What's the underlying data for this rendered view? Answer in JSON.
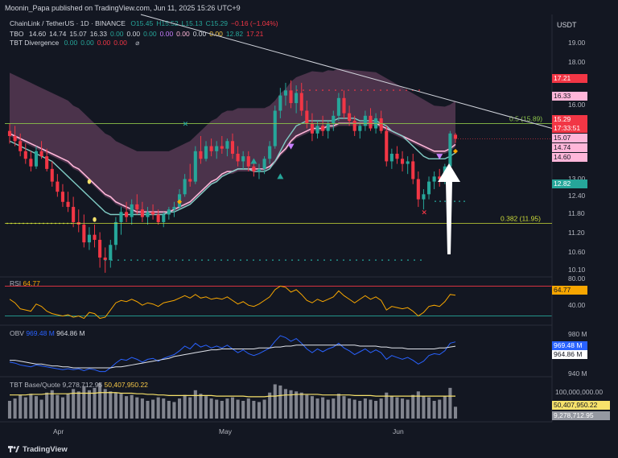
{
  "header": {
    "publisher": "Moonin_Papa published on TradingView.com, Jun 11, 2025 15:26 UTC+9"
  },
  "legend": {
    "symbol": "ChainLink / TetherUS · 1D · BINANCE",
    "ohlc": [
      {
        "k": "O",
        "v": "15.45",
        "c": "up"
      },
      {
        "k": "H",
        "v": "15.52",
        "c": "up"
      },
      {
        "k": "L",
        "v": "15.13",
        "c": "up"
      },
      {
        "k": "C",
        "v": "15.29",
        "c": "up"
      },
      {
        "k": "",
        "v": "−0.16 (−1.04%)",
        "c": "dn"
      }
    ],
    "tbo": {
      "name": "TBO",
      "values": [
        "14.60",
        "14.74",
        "15.07",
        "16.33",
        "0.00",
        "0.00",
        "0.00",
        "0.00",
        "0.00",
        "0.00",
        "0.00",
        "12.82",
        "17.21"
      ]
    },
    "divergence": {
      "name": "TBT Divergence",
      "values": [
        "0.00",
        "0.00",
        "0.00",
        "0.00"
      ]
    }
  },
  "price_axis": {
    "currency": "USDT",
    "ticks": [
      "19.00",
      "18.00",
      "17.21",
      "16.33",
      "16.00",
      "15.29",
      "15.07",
      "14.74",
      "14.60",
      "13.00",
      "12.82",
      "12.40",
      "11.80",
      "11.20",
      "10.60",
      "10.10"
    ],
    "countdown": "17:33:51"
  },
  "fib": [
    {
      "label": "0.5 (15.89)",
      "value": 15.89
    },
    {
      "label": "0.382 (11.95)",
      "value": 11.95
    }
  ],
  "rsi": {
    "title": "RSI",
    "value": "64.77",
    "ticks": [
      "80.00",
      "40.00"
    ]
  },
  "obv": {
    "title": "OBV",
    "v1": "969.48 M",
    "v2": "964.86 M",
    "ticks": [
      "980 M",
      "940 M"
    ]
  },
  "volume": {
    "title": "TBT Base/Quote",
    "v1": "9,278,712.95",
    "v2": "50,407,950.22",
    "ticks": [
      "100,000,000.00"
    ]
  },
  "time_axis": [
    "Apr",
    "May",
    "Jun"
  ],
  "brand": "TradingView",
  "colors": {
    "up": "#26a69a",
    "down": "#f23645",
    "band": "#8a5a7a",
    "ma": "#ffb6d9",
    "rsi": "#f7a600",
    "obv": "#2962ff"
  },
  "chart_data": {
    "type": "candlestick",
    "title": "ChainLink / TetherUS · 1D · BINANCE",
    "x": [
      "Mar 19",
      "Mar 20",
      "Mar 21",
      "Mar 22",
      "Mar 23",
      "Mar 24",
      "Mar 25",
      "Mar 26",
      "Mar 27",
      "Mar 28",
      "Mar 29",
      "Mar 30",
      "Mar 31",
      "Apr 1",
      "Apr 2",
      "Apr 3",
      "Apr 4",
      "Apr 5",
      "Apr 6",
      "Apr 7",
      "Apr 8",
      "Apr 9",
      "Apr 10",
      "Apr 11",
      "Apr 12",
      "Apr 13",
      "Apr 14",
      "Apr 15",
      "Apr 16",
      "Apr 17",
      "Apr 18",
      "Apr 19",
      "Apr 20",
      "Apr 21",
      "Apr 22",
      "Apr 23",
      "Apr 24",
      "Apr 25",
      "Apr 26",
      "Apr 27",
      "Apr 28",
      "Apr 29",
      "Apr 30",
      "May 1",
      "May 2",
      "May 3",
      "May 4",
      "May 5",
      "May 6",
      "May 7",
      "May 8",
      "May 9",
      "May 10",
      "May 11",
      "May 12",
      "May 13",
      "May 14",
      "May 15",
      "May 16",
      "May 17",
      "May 18",
      "May 19",
      "May 20",
      "May 21",
      "May 22",
      "May 23",
      "May 24",
      "May 25",
      "May 26",
      "May 27",
      "May 28",
      "May 29",
      "May 30",
      "May 31",
      "Jun 1",
      "Jun 2",
      "Jun 3",
      "Jun 4",
      "Jun 5",
      "Jun 6",
      "Jun 7",
      "Jun 8",
      "Jun 9",
      "Jun 10",
      "Jun 11"
    ],
    "candles": [
      [
        15.6,
        15.9,
        15.1,
        15.4
      ],
      [
        15.4,
        15.8,
        15.0,
        15.2
      ],
      [
        15.2,
        15.5,
        14.6,
        14.8
      ],
      [
        14.8,
        15.1,
        14.3,
        14.5
      ],
      [
        14.5,
        14.8,
        14.0,
        14.2
      ],
      [
        14.2,
        15.0,
        14.1,
        14.8
      ],
      [
        14.8,
        15.2,
        14.5,
        14.6
      ],
      [
        14.6,
        14.9,
        14.0,
        14.1
      ],
      [
        14.1,
        14.4,
        13.4,
        13.6
      ],
      [
        13.6,
        13.9,
        13.0,
        13.2
      ],
      [
        13.2,
        13.5,
        12.6,
        12.8
      ],
      [
        12.8,
        13.2,
        12.4,
        12.6
      ],
      [
        12.6,
        13.0,
        11.8,
        12.0
      ],
      [
        12.0,
        12.5,
        11.6,
        11.9
      ],
      [
        11.9,
        12.3,
        11.0,
        11.2
      ],
      [
        11.2,
        11.8,
        10.9,
        11.5
      ],
      [
        11.5,
        11.9,
        11.0,
        11.3
      ],
      [
        11.3,
        11.6,
        10.2,
        10.6
      ],
      [
        10.6,
        11.0,
        10.0,
        10.5
      ],
      [
        10.5,
        11.3,
        10.2,
        11.1
      ],
      [
        11.1,
        12.2,
        10.9,
        12.0
      ],
      [
        12.0,
        12.6,
        11.5,
        12.4
      ],
      [
        12.4,
        12.8,
        12.0,
        12.2
      ],
      [
        12.2,
        12.9,
        11.9,
        12.7
      ],
      [
        12.7,
        13.1,
        12.3,
        12.5
      ],
      [
        12.5,
        12.8,
        12.0,
        12.2
      ],
      [
        12.2,
        12.6,
        11.9,
        12.4
      ],
      [
        12.4,
        12.7,
        12.1,
        12.3
      ],
      [
        12.3,
        12.5,
        11.9,
        12.0
      ],
      [
        12.0,
        12.4,
        11.8,
        12.3
      ],
      [
        12.3,
        12.6,
        12.1,
        12.5
      ],
      [
        12.5,
        12.8,
        12.2,
        12.6
      ],
      [
        12.6,
        13.3,
        12.5,
        13.1
      ],
      [
        13.1,
        13.9,
        13.0,
        13.7
      ],
      [
        13.7,
        14.3,
        13.4,
        13.6
      ],
      [
        13.6,
        15.0,
        13.5,
        14.8
      ],
      [
        14.8,
        15.4,
        14.3,
        14.5
      ],
      [
        14.5,
        15.2,
        14.4,
        15.0
      ],
      [
        15.0,
        15.3,
        14.6,
        14.8
      ],
      [
        14.8,
        15.2,
        14.5,
        15.0
      ],
      [
        15.0,
        15.4,
        14.7,
        14.9
      ],
      [
        14.9,
        15.3,
        14.6,
        15.2
      ],
      [
        15.2,
        15.5,
        14.5,
        14.7
      ],
      [
        14.7,
        15.0,
        14.2,
        14.4
      ],
      [
        14.4,
        14.8,
        14.1,
        14.6
      ],
      [
        14.6,
        14.8,
        14.0,
        14.2
      ],
      [
        14.2,
        14.5,
        13.8,
        14.0
      ],
      [
        14.0,
        14.3,
        13.7,
        14.1
      ],
      [
        14.1,
        14.6,
        13.9,
        14.5
      ],
      [
        14.5,
        15.2,
        14.3,
        15.0
      ],
      [
        15.0,
        16.6,
        14.9,
        16.4
      ],
      [
        16.4,
        17.3,
        16.1,
        17.0
      ],
      [
        17.0,
        17.5,
        16.6,
        17.2
      ],
      [
        17.2,
        17.6,
        16.5,
        16.7
      ],
      [
        16.7,
        17.4,
        16.3,
        17.1
      ],
      [
        17.1,
        17.5,
        16.2,
        16.4
      ],
      [
        16.4,
        16.8,
        15.7,
        15.9
      ],
      [
        15.9,
        16.3,
        15.2,
        15.5
      ],
      [
        15.5,
        16.0,
        15.3,
        15.8
      ],
      [
        15.8,
        16.2,
        15.4,
        15.6
      ],
      [
        15.6,
        16.0,
        15.3,
        15.9
      ],
      [
        15.9,
        16.4,
        15.6,
        16.2
      ],
      [
        16.2,
        17.1,
        16.0,
        16.9
      ],
      [
        16.9,
        17.2,
        16.1,
        16.3
      ],
      [
        16.3,
        16.6,
        15.8,
        16.0
      ],
      [
        16.0,
        16.2,
        15.4,
        15.6
      ],
      [
        15.6,
        15.9,
        15.3,
        15.8
      ],
      [
        15.8,
        16.4,
        15.6,
        16.2
      ],
      [
        16.2,
        16.5,
        15.6,
        15.7
      ],
      [
        15.7,
        16.3,
        15.5,
        16.1
      ],
      [
        16.1,
        16.4,
        15.5,
        15.6
      ],
      [
        15.6,
        15.8,
        14.2,
        14.4
      ],
      [
        14.4,
        14.9,
        14.1,
        14.7
      ],
      [
        14.7,
        15.0,
        14.3,
        14.5
      ],
      [
        14.5,
        14.8,
        14.0,
        14.3
      ],
      [
        14.3,
        14.6,
        13.9,
        14.4
      ],
      [
        14.4,
        14.7,
        13.5,
        13.7
      ],
      [
        13.7,
        14.0,
        12.6,
        12.9
      ],
      [
        12.9,
        13.3,
        12.5,
        13.1
      ],
      [
        13.1,
        13.8,
        12.9,
        13.6
      ],
      [
        13.6,
        14.0,
        13.3,
        13.8
      ],
      [
        13.8,
        14.1,
        13.4,
        13.7
      ],
      [
        13.7,
        14.3,
        13.5,
        14.2
      ],
      [
        14.2,
        15.6,
        14.1,
        15.5
      ],
      [
        15.45,
        15.52,
        15.13,
        15.29
      ]
    ],
    "ma_fast": [
      15.2,
      15.1,
      15.0,
      14.9,
      14.8,
      14.7,
      14.6,
      14.5,
      14.4,
      14.2,
      14.0,
      13.8,
      13.6,
      13.4,
      13.2,
      13.0,
      12.8,
      12.6,
      12.4,
      12.3,
      12.3,
      12.3,
      12.3,
      12.3,
      12.3,
      12.3,
      12.3,
      12.3,
      12.3,
      12.3,
      12.4,
      12.4,
      12.5,
      12.6,
      12.7,
      12.9,
      13.1,
      13.3,
      13.5,
      13.6,
      13.8,
      13.9,
      14.0,
      14.1,
      14.1,
      14.1,
      14.0,
      14.0,
      14.0,
      14.1,
      14.4,
      14.8,
      15.2,
      15.5,
      15.8,
      15.9,
      16.0,
      16.0,
      16.0,
      16.0,
      16.0,
      16.0,
      16.1,
      16.1,
      16.1,
      16.1,
      16.0,
      16.0,
      16.0,
      16.0,
      15.9,
      15.8,
      15.6,
      15.5,
      15.4,
      15.2,
      15.0,
      14.8,
      14.6,
      14.5,
      14.5,
      14.5,
      14.5,
      14.6,
      14.74
    ],
    "ma_slow": [
      15.5,
      15.4,
      15.3,
      15.2,
      15.1,
      15.0,
      14.9,
      14.8,
      14.7,
      14.6,
      14.5,
      14.4,
      14.2,
      14.1,
      13.9,
      13.7,
      13.5,
      13.3,
      13.1,
      13.0,
      12.8,
      12.7,
      12.6,
      12.5,
      12.4,
      12.4,
      12.4,
      12.4,
      12.4,
      12.4,
      12.4,
      12.5,
      12.6,
      12.7,
      12.8,
      13.0,
      13.2,
      13.4,
      13.6,
      13.7,
      13.9,
      14.0,
      14.0,
      14.1,
      14.1,
      14.1,
      14.1,
      14.1,
      14.1,
      14.2,
      14.4,
      14.7,
      14.9,
      15.2,
      15.4,
      15.5,
      15.6,
      15.7,
      15.7,
      15.7,
      15.8,
      15.8,
      15.9,
      15.9,
      15.9,
      15.9,
      15.9,
      15.9,
      15.9,
      15.9,
      15.8,
      15.7,
      15.6,
      15.5,
      15.4,
      15.3,
      15.2,
      15.1,
      15.0,
      14.9,
      14.8,
      14.8,
      14.8,
      14.9,
      15.07
    ],
    "ylim": [
      9.9,
      19.5
    ],
    "rsi": [
      58,
      52,
      42,
      40,
      38,
      50,
      46,
      38,
      34,
      32,
      30,
      32,
      28,
      30,
      26,
      36,
      34,
      26,
      28,
      40,
      52,
      56,
      54,
      58,
      54,
      48,
      52,
      50,
      46,
      52,
      54,
      56,
      60,
      64,
      60,
      66,
      60,
      62,
      58,
      60,
      58,
      62,
      56,
      50,
      54,
      48,
      46,
      50,
      56,
      62,
      74,
      80,
      78,
      70,
      74,
      66,
      56,
      52,
      58,
      54,
      58,
      62,
      72,
      64,
      58,
      52,
      58,
      64,
      58,
      62,
      56,
      40,
      46,
      44,
      42,
      44,
      38,
      30,
      36,
      46,
      48,
      46,
      54,
      66,
      64.77
    ],
    "obv": [
      948,
      947,
      945,
      944,
      943,
      945,
      944,
      943,
      942,
      941,
      940,
      941,
      940,
      941,
      939,
      941,
      940,
      938,
      938,
      942,
      947,
      951,
      950,
      953,
      951,
      948,
      951,
      952,
      949,
      952,
      954,
      956,
      960,
      965,
      962,
      968,
      964,
      966,
      963,
      965,
      963,
      966,
      962,
      958,
      961,
      957,
      955,
      957,
      960,
      963,
      970,
      976,
      974,
      970,
      973,
      968,
      962,
      958,
      962,
      959,
      962,
      964,
      968,
      963,
      960,
      956,
      959,
      962,
      958,
      961,
      958,
      951,
      955,
      953,
      951,
      953,
      950,
      946,
      949,
      955,
      957,
      956,
      960,
      968,
      969.48
    ],
    "obv_ma": [
      950,
      950,
      949,
      948,
      947,
      946,
      946,
      945,
      944,
      944,
      943,
      943,
      942,
      942,
      942,
      942,
      942,
      942,
      942,
      942,
      943,
      943,
      944,
      945,
      946,
      947,
      948,
      949,
      950,
      951,
      952,
      954,
      955,
      956,
      957,
      958,
      959,
      960,
      961,
      961,
      962,
      962,
      962,
      962,
      962,
      962,
      962,
      963,
      963,
      963,
      964,
      964,
      965,
      965,
      966,
      966,
      966,
      966,
      966,
      966,
      966,
      966,
      966,
      966,
      966,
      966,
      965,
      965,
      965,
      965,
      964,
      964,
      963,
      963,
      963,
      962,
      962,
      962,
      962,
      962,
      962,
      963,
      963,
      964,
      964.86
    ],
    "volume": [
      30,
      34,
      40,
      36,
      42,
      38,
      32,
      44,
      48,
      40,
      36,
      42,
      50,
      46,
      55,
      48,
      52,
      60,
      50,
      46,
      44,
      42,
      38,
      40,
      36,
      34,
      30,
      32,
      36,
      34,
      30,
      28,
      34,
      40,
      36,
      48,
      42,
      38,
      34,
      32,
      30,
      34,
      36,
      32,
      30,
      34,
      30,
      28,
      32,
      44,
      58,
      56,
      50,
      48,
      46,
      44,
      40,
      38,
      34,
      36,
      32,
      34,
      42,
      38,
      34,
      32,
      30,
      34,
      32,
      30,
      34,
      44,
      38,
      36,
      34,
      32,
      40,
      46,
      38,
      36,
      30,
      32,
      38,
      52,
      20
    ],
    "volume_ma": [
      40,
      40,
      40,
      40,
      41,
      41,
      41,
      42,
      42,
      42,
      42,
      42,
      43,
      43,
      43,
      43,
      43,
      44,
      44,
      44,
      44,
      43,
      43,
      43,
      42,
      42,
      41,
      41,
      40,
      40,
      39,
      39,
      39,
      39,
      39,
      39,
      39,
      39,
      39,
      38,
      38,
      38,
      38,
      38,
      38,
      37,
      37,
      37,
      37,
      38,
      38,
      39,
      40,
      40,
      41,
      41,
      41,
      41,
      41,
      40,
      40,
      40,
      40,
      40,
      40,
      39,
      39,
      39,
      39,
      38,
      38,
      38,
      38,
      38,
      38,
      38,
      38,
      38,
      38,
      38,
      38,
      38,
      38,
      38,
      38
    ]
  }
}
